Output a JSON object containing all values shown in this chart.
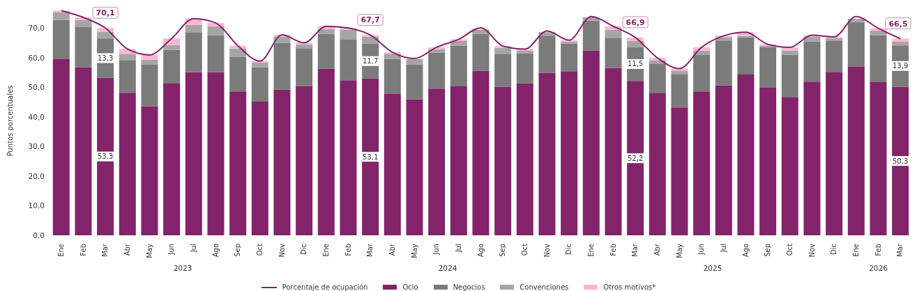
{
  "chart_data": {
    "type": "bar",
    "stacked": true,
    "legend": "bottom",
    "ylabel": "Puntos porcentuales",
    "categories": [
      "Ene",
      "Feb",
      "Mar",
      "Abr",
      "May",
      "Jun",
      "Jul",
      "Ago",
      "Sep",
      "Oct",
      "Nov",
      "Dic",
      "Ene",
      "Feb",
      "Mar",
      "Abr",
      "May",
      "Jun",
      "Jul",
      "Ago",
      "Sep",
      "Oct",
      "Nov",
      "Dic",
      "Ene",
      "Feb",
      "Mar",
      "Abr",
      "May",
      "Jun",
      "Jul",
      "Ago",
      "Sep",
      "Oct",
      "Nov",
      "Dic",
      "Ene",
      "Feb",
      "Mar"
    ],
    "annotations": [
      "2023",
      "2024",
      "2025",
      "2026"
    ],
    "ylim": [
      0,
      77
    ],
    "yticks": [
      {
        "value": 0,
        "label": "0,0"
      },
      {
        "value": 10,
        "label": "10,0"
      },
      {
        "value": 20,
        "label": "20,0"
      },
      {
        "value": 30,
        "label": "30,0"
      },
      {
        "value": 40,
        "label": "40,0"
      },
      {
        "value": 50,
        "label": "50,0"
      },
      {
        "value": 60,
        "label": "60,0"
      },
      {
        "value": 70,
        "label": "70,0"
      }
    ],
    "series": [
      {
        "name": "Porcentaje de ocupación",
        "type": "line",
        "color": "#83236a",
        "values": [
          76.0,
          73.7,
          70.1,
          63.0,
          61.0,
          66.6,
          73.3,
          71.8,
          64.1,
          58.9,
          67.8,
          65.1,
          70.7,
          70.1,
          67.7,
          61.9,
          59.8,
          63.6,
          66.3,
          70.2,
          64.0,
          63.0,
          69.1,
          66.0,
          74.0,
          70.7,
          66.9,
          60.0,
          56.4,
          63.6,
          67.5,
          68.7,
          64.6,
          63.6,
          67.7,
          67.1,
          74.0,
          70.0,
          66.5
        ],
        "value_labels": [
          null,
          null,
          "70,1",
          null,
          null,
          null,
          null,
          null,
          null,
          null,
          null,
          null,
          null,
          null,
          "67,7",
          null,
          null,
          null,
          null,
          null,
          null,
          null,
          null,
          null,
          null,
          null,
          "66,9",
          null,
          null,
          null,
          null,
          null,
          null,
          null,
          null,
          null,
          null,
          null,
          "66,5"
        ]
      },
      {
        "name": "Ocio",
        "color": "#83236a",
        "values": [
          59.6,
          56.8,
          53.3,
          48.2,
          43.7,
          51.5,
          55.2,
          55.2,
          48.5,
          45.2,
          49.3,
          50.5,
          56.4,
          52.3,
          53.1,
          47.8,
          46.0,
          49.6,
          50.4,
          55.7,
          50.3,
          51.4,
          55.0,
          55.5,
          62.5,
          56.6,
          52.2,
          48.2,
          43.1,
          48.5,
          50.7,
          54.4,
          49.9,
          46.6,
          52.0,
          55.3,
          57.0,
          51.8,
          50.3
        ],
        "value_labels": [
          null,
          null,
          "53,3",
          null,
          null,
          null,
          null,
          null,
          null,
          null,
          null,
          null,
          null,
          null,
          "53,1",
          null,
          null,
          null,
          null,
          null,
          null,
          null,
          null,
          null,
          null,
          null,
          "52,2",
          null,
          null,
          null,
          null,
          null,
          null,
          null,
          null,
          null,
          null,
          null,
          "50,3"
        ]
      },
      {
        "name": "Negocios",
        "color": "#7b7b7b",
        "values": [
          13.3,
          13.6,
          13.3,
          10.9,
          14.0,
          11.2,
          13.5,
          12.4,
          11.8,
          11.6,
          15.8,
          12.8,
          11.7,
          13.9,
          11.7,
          11.8,
          11.7,
          12.2,
          13.7,
          12.4,
          11.1,
          10.2,
          12.5,
          9.4,
          10.1,
          10.2,
          11.5,
          9.9,
          11.3,
          12.5,
          15.2,
          12.5,
          13.7,
          14.5,
          13.5,
          10.6,
          15.2,
          15.9,
          13.9
        ],
        "value_labels": [
          null,
          null,
          "13,3",
          null,
          null,
          null,
          null,
          null,
          null,
          null,
          null,
          null,
          null,
          null,
          "11,7",
          null,
          null,
          null,
          null,
          null,
          null,
          null,
          null,
          null,
          null,
          null,
          "11,5",
          null,
          null,
          null,
          null,
          null,
          null,
          null,
          null,
          null,
          null,
          null,
          "13,9"
        ]
      },
      {
        "name": "Convenciones",
        "color": "#a5a5a5",
        "values": [
          2.6,
          2.4,
          2.3,
          2.3,
          1.7,
          1.7,
          2.5,
          3.1,
          2.9,
          1.7,
          2.1,
          1.3,
          1.7,
          3.3,
          2.3,
          1.8,
          1.9,
          1.2,
          1.6,
          1.5,
          2.0,
          0.9,
          1.2,
          0.6,
          1.1,
          2.7,
          2.0,
          1.1,
          1.3,
          1.5,
          1.0,
          0.6,
          0.5,
          1.4,
          1.6,
          0.8,
          1.0,
          1.6,
          1.3
        ]
      },
      {
        "name": "Otros motivos*",
        "color": "#ffb6d3",
        "values": [
          0.5,
          0.9,
          1.2,
          1.6,
          1.6,
          2.2,
          2.1,
          1.1,
          0.9,
          0.4,
          0.6,
          0.5,
          0.9,
          0.6,
          0.6,
          0.5,
          null,
          0.6,
          0.6,
          null,
          0.6,
          0.5,
          null,
          0.5,
          null,
          1.2,
          1.2,
          0.8,
          0.7,
          1.1,
          0.6,
          1.2,
          0.5,
          1.1,
          0.6,
          0.4,
          null,
          0.7,
          1.0
        ]
      }
    ]
  }
}
